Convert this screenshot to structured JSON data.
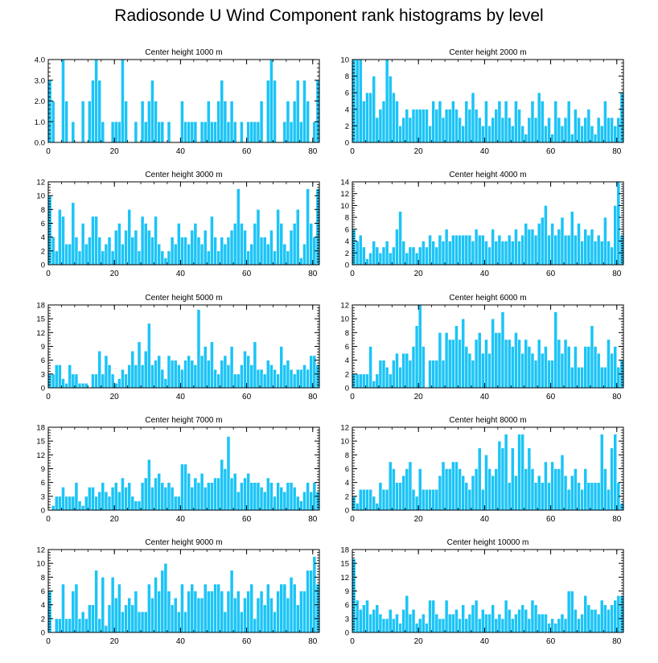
{
  "figure_title": "Radiosonde U Wind Component rank histograms by level",
  "colors": {
    "bar": "#1CC4F6",
    "bar_edge": "#ffffff",
    "axis": "#000000"
  },
  "chart_data": [
    {
      "type": "bar",
      "title": "Center height 1000 m",
      "xlim": [
        0,
        82
      ],
      "ylim": [
        0,
        4
      ],
      "xticks": [
        0,
        20,
        40,
        60,
        80
      ],
      "yticks": [
        0,
        1,
        2,
        3,
        4
      ],
      "ytick_labels": [
        "0.0",
        "1.0",
        "2.0",
        "3.0",
        "4.0"
      ],
      "values": [
        3,
        2,
        0,
        0,
        4,
        2,
        0,
        1,
        0,
        0,
        2,
        0,
        2,
        3,
        4,
        3,
        1,
        0,
        0,
        1,
        1,
        1,
        4,
        2,
        0,
        0,
        1,
        0,
        2,
        1,
        2,
        3,
        2,
        1,
        1,
        0,
        1,
        0,
        0,
        0,
        2,
        1,
        1,
        1,
        1,
        0,
        1,
        1,
        2,
        1,
        1,
        2,
        3,
        2,
        1,
        2,
        1,
        0,
        1,
        0,
        1,
        1,
        1,
        1,
        2,
        0,
        3,
        4,
        3,
        0,
        0,
        1,
        2,
        1,
        2,
        3,
        1,
        3,
        2,
        0,
        1,
        3
      ]
    },
    {
      "type": "bar",
      "title": "Center height 2000 m",
      "xlim": [
        0,
        82
      ],
      "ylim": [
        0,
        10
      ],
      "xticks": [
        0,
        20,
        40,
        60,
        80
      ],
      "yticks": [
        0,
        2,
        4,
        6,
        8,
        10
      ],
      "ytick_labels": [
        "0",
        "2",
        "4",
        "6",
        "8",
        "10"
      ],
      "values": [
        10,
        10,
        10,
        5,
        6,
        6,
        8,
        3,
        4,
        5,
        10,
        8,
        6,
        5,
        2,
        3,
        4,
        3,
        4,
        4,
        4,
        4,
        4,
        2,
        5,
        4,
        5,
        3,
        4,
        4,
        5,
        4,
        3,
        2,
        5,
        4,
        6,
        4,
        3,
        2,
        5,
        2,
        3,
        4,
        5,
        3,
        5,
        3,
        2,
        5,
        4,
        2,
        1,
        3,
        5,
        3,
        6,
        5,
        2,
        3,
        1,
        5,
        3,
        2,
        3,
        5,
        1,
        4,
        3,
        2,
        3,
        4,
        2,
        1,
        3,
        2,
        5,
        3,
        3,
        2,
        3,
        6
      ]
    },
    {
      "type": "bar",
      "title": "Center height 3000 m",
      "xlim": [
        0,
        82
      ],
      "ylim": [
        0,
        12
      ],
      "xticks": [
        0,
        20,
        40,
        60,
        80
      ],
      "yticks": [
        0,
        2,
        4,
        6,
        8,
        10,
        12
      ],
      "ytick_labels": [
        "0",
        "2",
        "4",
        "6",
        "8",
        "10",
        "12"
      ],
      "values": [
        10,
        4,
        2,
        8,
        7,
        3,
        3,
        9,
        4,
        2,
        6,
        3,
        4,
        7,
        7,
        4,
        2,
        3,
        4,
        2,
        5,
        6,
        3,
        5,
        8,
        4,
        5,
        2,
        7,
        6,
        5,
        4,
        7,
        3,
        2,
        1,
        2,
        4,
        3,
        6,
        4,
        4,
        3,
        5,
        6,
        4,
        3,
        5,
        2,
        7,
        4,
        2,
        4,
        3,
        4,
        5,
        6,
        11,
        6,
        5,
        2,
        3,
        6,
        8,
        4,
        4,
        3,
        5,
        2,
        8,
        6,
        3,
        2,
        5,
        6,
        8,
        1,
        3,
        11,
        6,
        4,
        11
      ]
    },
    {
      "type": "bar",
      "title": "Center height 4000 m",
      "xlim": [
        0,
        82
      ],
      "ylim": [
        0,
        14
      ],
      "xticks": [
        0,
        20,
        40,
        60,
        80
      ],
      "yticks": [
        0,
        2,
        4,
        6,
        8,
        10,
        12,
        14
      ],
      "ytick_labels": [
        "0",
        "2",
        "4",
        "6",
        "8",
        "10",
        "12",
        "14"
      ],
      "values": [
        6,
        4,
        5,
        3,
        1,
        2,
        4,
        3,
        2,
        3,
        4,
        2,
        3,
        6,
        9,
        4,
        2,
        3,
        3,
        2,
        3,
        4,
        3,
        5,
        4,
        3,
        5,
        4,
        6,
        4,
        5,
        5,
        5,
        5,
        5,
        5,
        4,
        6,
        5,
        5,
        4,
        3,
        6,
        4,
        5,
        4,
        4,
        5,
        4,
        6,
        4,
        5,
        7,
        6,
        6,
        5,
        7,
        8,
        10,
        5,
        7,
        5,
        6,
        8,
        5,
        5,
        9,
        5,
        7,
        4,
        6,
        5,
        6,
        4,
        5,
        4,
        8,
        4,
        3,
        10,
        14,
        5
      ]
    },
    {
      "type": "bar",
      "title": "Center height 5000 m",
      "xlim": [
        0,
        82
      ],
      "ylim": [
        0,
        18
      ],
      "xticks": [
        0,
        20,
        40,
        60,
        80
      ],
      "yticks": [
        0,
        3,
        6,
        9,
        12,
        15,
        18
      ],
      "ytick_labels": [
        "0",
        "3",
        "6",
        "9",
        "12",
        "15",
        "18"
      ],
      "values": [
        3,
        3,
        5,
        5,
        2,
        1,
        5,
        3,
        3,
        1,
        1,
        1,
        0,
        3,
        3,
        8,
        3,
        7,
        5,
        3,
        1,
        2,
        4,
        3,
        5,
        8,
        5,
        10,
        5,
        8,
        14,
        5,
        6,
        7,
        4,
        2,
        7,
        6,
        6,
        5,
        4,
        6,
        7,
        6,
        5,
        17,
        7,
        9,
        6,
        10,
        4,
        3,
        6,
        7,
        5,
        9,
        3,
        3,
        5,
        8,
        7,
        5,
        10,
        4,
        4,
        3,
        6,
        5,
        4,
        3,
        9,
        5,
        6,
        4,
        3,
        4,
        4,
        5,
        4,
        7,
        7,
        5
      ]
    },
    {
      "type": "bar",
      "title": "Center height 6000 m",
      "xlim": [
        0,
        82
      ],
      "ylim": [
        0,
        12
      ],
      "xticks": [
        0,
        20,
        40,
        60,
        80
      ],
      "yticks": [
        0,
        2,
        4,
        6,
        8,
        10,
        12
      ],
      "ytick_labels": [
        "0",
        "2",
        "4",
        "6",
        "8",
        "10",
        "12"
      ],
      "values": [
        2,
        2,
        2,
        2,
        2,
        6,
        1,
        2,
        4,
        4,
        3,
        2,
        4,
        5,
        3,
        5,
        5,
        4,
        6,
        9,
        12,
        6,
        0,
        4,
        4,
        4,
        8,
        4,
        8,
        7,
        7,
        9,
        7,
        10,
        6,
        5,
        4,
        7,
        8,
        5,
        7,
        5,
        10,
        8,
        8,
        11,
        7,
        7,
        6,
        8,
        7,
        5,
        7,
        6,
        5,
        4,
        7,
        5,
        6,
        4,
        4,
        11,
        7,
        5,
        7,
        6,
        3,
        6,
        3,
        3,
        6,
        6,
        9,
        6,
        5,
        3,
        3,
        7,
        5,
        6,
        3,
        4
      ]
    },
    {
      "type": "bar",
      "title": "Center height 7000 m",
      "xlim": [
        0,
        82
      ],
      "ylim": [
        0,
        18
      ],
      "xticks": [
        0,
        20,
        40,
        60,
        80
      ],
      "yticks": [
        0,
        3,
        6,
        9,
        12,
        15,
        18
      ],
      "ytick_labels": [
        "0",
        "3",
        "6",
        "9",
        "12",
        "15",
        "18"
      ],
      "values": [
        0,
        1,
        3,
        3,
        5,
        3,
        3,
        3,
        6,
        2,
        1,
        3,
        5,
        5,
        3,
        4,
        6,
        4,
        3,
        5,
        6,
        4,
        7,
        5,
        6,
        3,
        2,
        2,
        6,
        7,
        11,
        5,
        7,
        8,
        6,
        5,
        6,
        5,
        3,
        3,
        10,
        10,
        8,
        5,
        7,
        6,
        8,
        5,
        6,
        6,
        7,
        7,
        11,
        9,
        16,
        7,
        8,
        4,
        6,
        7,
        8,
        6,
        6,
        6,
        5,
        4,
        7,
        6,
        3,
        6,
        5,
        4,
        6,
        6,
        5,
        3,
        2,
        4,
        6,
        4,
        6,
        4
      ]
    },
    {
      "type": "bar",
      "title": "Center height 8000 m",
      "xlim": [
        0,
        82
      ],
      "ylim": [
        0,
        12
      ],
      "xticks": [
        0,
        20,
        40,
        60,
        80
      ],
      "yticks": [
        0,
        2,
        4,
        6,
        8,
        10,
        12
      ],
      "ytick_labels": [
        "0",
        "2",
        "4",
        "6",
        "8",
        "10",
        "12"
      ],
      "values": [
        2,
        1,
        3,
        3,
        3,
        3,
        2,
        1,
        4,
        3,
        3,
        7,
        6,
        4,
        4,
        5,
        6,
        7,
        3,
        2,
        6,
        3,
        3,
        3,
        3,
        3,
        5,
        7,
        6,
        6,
        7,
        7,
        6,
        5,
        4,
        3,
        5,
        6,
        9,
        3,
        8,
        6,
        5,
        6,
        10,
        9,
        11,
        4,
        9,
        5,
        11,
        11,
        6,
        9,
        6,
        4,
        5,
        4,
        7,
        4,
        7,
        6,
        6,
        8,
        5,
        3,
        5,
        6,
        4,
        3,
        6,
        4,
        4,
        4,
        4,
        11,
        6,
        3,
        9,
        11,
        4,
        1
      ]
    },
    {
      "type": "bar",
      "title": "Center height 9000 m",
      "xlim": [
        0,
        82
      ],
      "ylim": [
        0,
        12
      ],
      "xticks": [
        0,
        20,
        40,
        60,
        80
      ],
      "yticks": [
        0,
        2,
        4,
        6,
        8,
        10,
        12
      ],
      "ytick_labels": [
        "0",
        "2",
        "4",
        "6",
        "8",
        "10",
        "12"
      ],
      "values": [
        6,
        0,
        2,
        2,
        7,
        2,
        2,
        6,
        7,
        2,
        3,
        2,
        4,
        4,
        9,
        2,
        8,
        1,
        4,
        8,
        5,
        7,
        3,
        4,
        5,
        4,
        6,
        3,
        3,
        3,
        7,
        5,
        8,
        6,
        9,
        10,
        6,
        4,
        5,
        3,
        7,
        3,
        6,
        7,
        6,
        5,
        5,
        7,
        6,
        6,
        7,
        7,
        6,
        3,
        6,
        9,
        5,
        6,
        3,
        5,
        6,
        7,
        2,
        5,
        6,
        4,
        7,
        5,
        3,
        6,
        7,
        7,
        5,
        8,
        7,
        4,
        6,
        6,
        9,
        9,
        11,
        7
      ]
    },
    {
      "type": "bar",
      "title": "Center height 10000 m",
      "xlim": [
        0,
        82
      ],
      "ylim": [
        0,
        18
      ],
      "xticks": [
        0,
        20,
        40,
        60,
        80
      ],
      "yticks": [
        0,
        3,
        6,
        9,
        12,
        15,
        18
      ],
      "ytick_labels": [
        "0",
        "3",
        "6",
        "9",
        "12",
        "15",
        "18"
      ],
      "values": [
        16,
        7,
        5,
        6,
        7,
        4,
        5,
        6,
        4,
        3,
        3,
        5,
        3,
        4,
        2,
        5,
        8,
        4,
        5,
        2,
        3,
        4,
        2,
        7,
        7,
        4,
        3,
        3,
        7,
        4,
        4,
        5,
        3,
        6,
        3,
        4,
        6,
        7,
        3,
        5,
        4,
        4,
        6,
        3,
        4,
        3,
        7,
        5,
        3,
        4,
        5,
        6,
        5,
        3,
        7,
        6,
        4,
        4,
        4,
        2,
        3,
        2,
        3,
        4,
        3,
        9,
        9,
        5,
        3,
        4,
        8,
        6,
        5,
        5,
        4,
        7,
        6,
        5,
        6,
        7,
        8,
        8
      ]
    }
  ]
}
